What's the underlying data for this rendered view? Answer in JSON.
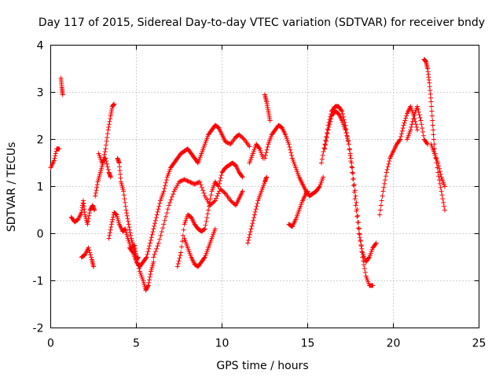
{
  "chart_data": {
    "type": "scatter",
    "title": "Day 117 of 2015, Sidereal Day-to-day VTEC variation (SDTVAR) for receiver bndy",
    "xlabel": "GPS time / hours",
    "ylabel": "SDTVAR / TECUs",
    "xlim": [
      0,
      25
    ],
    "ylim": [
      -2,
      4
    ],
    "xticks": [
      "0",
      "5",
      "10",
      "15",
      "20",
      "25"
    ],
    "yticks": [
      "-2",
      "-1",
      "0",
      "1",
      "2",
      "3",
      "4"
    ],
    "grid": true,
    "marker": "+",
    "color": "#ff0000",
    "series": [
      {
        "name": "a",
        "x": [
          0,
          0.2,
          0.35,
          0.5
        ],
        "y": [
          1.4,
          1.55,
          1.8,
          1.8
        ]
      },
      {
        "name": "b",
        "x": [
          0.6,
          0.65,
          0.7
        ],
        "y": [
          3.3,
          3.1,
          2.95
        ]
      },
      {
        "name": "c",
        "x": [
          1.2,
          1.4,
          1.6,
          1.8,
          1.9,
          2.0,
          2.15,
          2.3,
          2.45,
          2.55
        ],
        "y": [
          0.35,
          0.25,
          0.3,
          0.45,
          0.7,
          0.4,
          0.2,
          0.5,
          0.6,
          0.5
        ]
      },
      {
        "name": "d",
        "x": [
          1.8,
          2.0,
          2.2,
          2.4,
          2.5
        ],
        "y": [
          -0.5,
          -0.45,
          -0.3,
          -0.55,
          -0.7
        ]
      },
      {
        "name": "e",
        "x": [
          2.6,
          2.75,
          2.9,
          3.05,
          3.2,
          3.35,
          3.5,
          3.6,
          3.7
        ],
        "y": [
          0.8,
          1.1,
          1.3,
          1.5,
          1.8,
          2.2,
          2.5,
          2.7,
          2.75
        ]
      },
      {
        "name": "f",
        "x": [
          2.8,
          3.0,
          3.2,
          3.4,
          3.5
        ],
        "y": [
          1.7,
          1.5,
          1.6,
          1.3,
          1.2
        ]
      },
      {
        "name": "g",
        "x": [
          3.4,
          3.55,
          3.7,
          3.85,
          4.0,
          4.2,
          4.35,
          4.5,
          4.7,
          4.9,
          5.0,
          5.1
        ],
        "y": [
          -0.1,
          0.2,
          0.45,
          0.4,
          0.2,
          0.05,
          0.1,
          -0.1,
          -0.3,
          -0.25,
          -0.55,
          -0.5
        ]
      },
      {
        "name": "h",
        "x": [
          3.9,
          4.0,
          4.1,
          4.25,
          4.4,
          4.55,
          4.7,
          4.85,
          5.0,
          5.2,
          5.4,
          5.55,
          5.7,
          5.85,
          6.0
        ],
        "y": [
          1.6,
          1.5,
          1.1,
          0.9,
          0.5,
          0.2,
          -0.1,
          -0.3,
          -0.5,
          -0.8,
          -1.0,
          -1.2,
          -1.1,
          -0.8,
          -0.6
        ]
      },
      {
        "name": "i",
        "x": [
          4.6,
          4.8,
          5.0,
          5.2,
          5.4,
          5.6,
          5.8,
          6.0,
          6.2,
          6.4,
          6.6,
          6.8,
          7.0,
          7.2,
          7.4,
          7.6,
          7.8,
          8.0,
          8.2,
          8.4,
          8.6,
          8.8,
          9.0,
          9.2,
          9.4,
          9.6,
          9.8,
          10.0,
          10.2,
          10.5,
          10.8,
          11.0,
          11.3,
          11.6
        ],
        "y": [
          -0.3,
          -0.4,
          -0.6,
          -0.7,
          -0.6,
          -0.5,
          -0.2,
          0.1,
          0.4,
          0.7,
          0.9,
          1.2,
          1.4,
          1.5,
          1.6,
          1.7,
          1.75,
          1.8,
          1.7,
          1.6,
          1.5,
          1.7,
          1.9,
          2.1,
          2.2,
          2.3,
          2.25,
          2.1,
          1.95,
          1.9,
          2.05,
          2.1,
          2.0,
          1.85
        ]
      },
      {
        "name": "j",
        "x": [
          6.0,
          6.3,
          6.6,
          6.9,
          7.2,
          7.5,
          7.8,
          8.1,
          8.4,
          8.7,
          9.0,
          9.3,
          9.6,
          9.9,
          10.2,
          10.5,
          10.8,
          11.0,
          11.2
        ],
        "y": [
          -0.5,
          -0.2,
          0.2,
          0.6,
          0.9,
          1.1,
          1.15,
          1.1,
          1.05,
          1.1,
          0.8,
          0.6,
          0.7,
          0.95,
          0.85,
          0.7,
          0.6,
          0.75,
          0.9
        ]
      },
      {
        "name": "k",
        "x": [
          7.4,
          7.6,
          7.8,
          8.0,
          8.2,
          8.4,
          8.6,
          8.8,
          9.0,
          9.2,
          9.4,
          9.6,
          9.8,
          10.0,
          10.2,
          10.4,
          10.6,
          10.8,
          11.0,
          11.2
        ],
        "y": [
          -0.7,
          -0.4,
          0.2,
          0.4,
          0.35,
          0.2,
          0.1,
          0.05,
          0.1,
          0.5,
          0.9,
          1.1,
          1.0,
          1.3,
          1.4,
          1.45,
          1.5,
          1.45,
          1.3,
          1.2
        ]
      },
      {
        "name": "l",
        "x": [
          7.8,
          8.0,
          8.2,
          8.4,
          8.6,
          8.8,
          9.0,
          9.2,
          9.4,
          9.6
        ],
        "y": [
          -0.1,
          -0.3,
          -0.5,
          -0.65,
          -0.7,
          -0.6,
          -0.5,
          -0.3,
          -0.1,
          0.1
        ]
      },
      {
        "name": "m",
        "x": [
          11.5,
          11.7,
          11.9,
          12.1,
          12.3,
          12.5,
          12.6
        ],
        "y": [
          -0.2,
          0.1,
          0.4,
          0.7,
          0.9,
          1.1,
          1.2
        ]
      },
      {
        "name": "n",
        "x": [
          11.6,
          11.8,
          12.0,
          12.2,
          12.4
        ],
        "y": [
          1.5,
          1.7,
          1.9,
          1.8,
          1.6
        ]
      },
      {
        "name": "o",
        "x": [
          12.5,
          12.7,
          12.9,
          13.1,
          13.3,
          13.5,
          13.7,
          13.9,
          14.1,
          14.3,
          14.5,
          14.7,
          14.9,
          15.1,
          15.3,
          15.5,
          15.7,
          15.9
        ],
        "y": [
          1.6,
          1.9,
          2.1,
          2.2,
          2.3,
          2.25,
          2.1,
          1.9,
          1.6,
          1.4,
          1.2,
          1.05,
          0.9,
          0.8,
          0.85,
          0.9,
          1.0,
          1.2
        ]
      },
      {
        "name": "p",
        "x": [
          12.5,
          12.6,
          12.7,
          12.8
        ],
        "y": [
          2.95,
          2.8,
          2.6,
          2.4
        ]
      },
      {
        "name": "q",
        "x": [
          13.9,
          14.1,
          14.3,
          14.5,
          14.7,
          14.9,
          15.0
        ],
        "y": [
          0.2,
          0.15,
          0.3,
          0.5,
          0.7,
          0.85,
          0.9
        ]
      },
      {
        "name": "r",
        "x": [
          15.8,
          16.0,
          16.2,
          16.4,
          16.6,
          16.8,
          17.0,
          17.2,
          17.4,
          17.6,
          17.8,
          18.0,
          18.2,
          18.4,
          18.6,
          18.8,
          19.0
        ],
        "y": [
          1.5,
          1.9,
          2.3,
          2.6,
          2.7,
          2.7,
          2.6,
          2.3,
          1.9,
          1.3,
          0.6,
          0.0,
          -0.4,
          -0.6,
          -0.5,
          -0.3,
          -0.2
        ]
      },
      {
        "name": "s",
        "x": [
          16.0,
          16.2,
          16.4,
          16.6,
          16.8,
          17.0,
          17.2,
          17.4,
          17.6,
          17.8,
          18.0,
          18.2,
          18.4,
          18.6,
          18.8
        ],
        "y": [
          1.8,
          2.2,
          2.5,
          2.6,
          2.55,
          2.4,
          2.2,
          1.9,
          1.4,
          0.8,
          0.1,
          -0.5,
          -0.9,
          -1.1,
          -1.1
        ]
      },
      {
        "name": "t",
        "x": [
          19.2,
          19.4,
          19.6,
          19.8,
          20.0,
          20.2,
          20.4,
          20.6,
          20.8,
          21.0,
          21.2,
          21.4
        ],
        "y": [
          0.4,
          0.9,
          1.3,
          1.6,
          1.75,
          1.9,
          2.0,
          2.3,
          2.55,
          2.7,
          2.5,
          2.2
        ]
      },
      {
        "name": "u",
        "x": [
          20.8,
          21.0,
          21.2,
          21.4,
          21.6,
          21.8,
          22.0
        ],
        "y": [
          2.0,
          2.2,
          2.5,
          2.7,
          2.4,
          2.0,
          1.9
        ]
      },
      {
        "name": "v",
        "x": [
          21.8,
          21.9,
          22.0,
          22.1,
          22.2,
          22.3,
          22.4,
          22.6,
          22.8,
          23.0
        ],
        "y": [
          3.7,
          3.65,
          3.5,
          3.2,
          2.8,
          2.3,
          1.8,
          1.3,
          0.9,
          0.5
        ]
      },
      {
        "name": "w",
        "x": [
          22.2,
          22.4,
          22.6,
          22.8,
          23.0
        ],
        "y": [
          1.9,
          1.7,
          1.5,
          1.2,
          1.0
        ]
      }
    ]
  }
}
